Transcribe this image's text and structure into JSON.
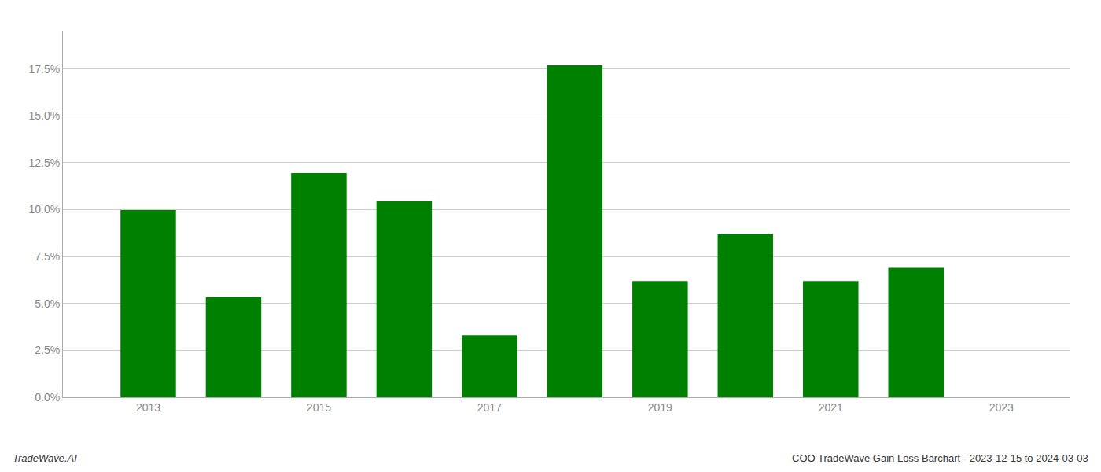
{
  "chart_data": {
    "type": "bar",
    "x": [
      2013,
      2014,
      2015,
      2016,
      2017,
      2018,
      2019,
      2020,
      2021,
      2022
    ],
    "values": [
      0.0998,
      0.0535,
      0.1195,
      0.1045,
      0.033,
      0.177,
      0.062,
      0.087,
      0.062,
      0.069
    ],
    "color": "#008000",
    "xlim": [
      2012.0,
      2023.8
    ],
    "xticks": [
      2013,
      2015,
      2017,
      2019,
      2021,
      2023
    ],
    "ylim": [
      0,
      0.195
    ],
    "yticks": [
      {
        "value": 0.0,
        "label": "0.0%"
      },
      {
        "value": 0.025,
        "label": "2.5%"
      },
      {
        "value": 0.05,
        "label": "5.0%"
      },
      {
        "value": 0.075,
        "label": "7.5%"
      },
      {
        "value": 0.1,
        "label": "10.0%"
      },
      {
        "value": 0.125,
        "label": "12.5%"
      },
      {
        "value": 0.15,
        "label": "15.0%"
      },
      {
        "value": 0.175,
        "label": "17.5%"
      }
    ],
    "grid": true,
    "annotations": [
      "TradeWave.AI",
      "COO TradeWave Gain Loss Barchart - 2023-12-15 to 2024-03-03"
    ]
  }
}
